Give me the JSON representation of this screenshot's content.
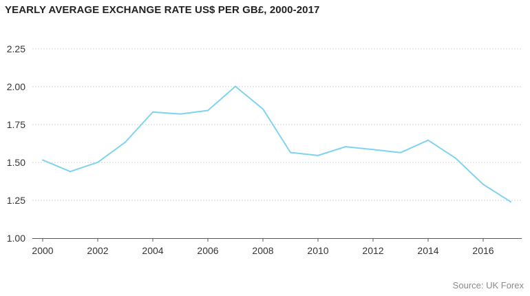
{
  "chart_data": {
    "type": "line",
    "title": "YEARLY AVERAGE EXCHANGE RATE US$ PER GB£, 2000-2017",
    "xlabel": "",
    "ylabel": "",
    "x": [
      2000,
      2001,
      2002,
      2003,
      2004,
      2005,
      2006,
      2007,
      2008,
      2009,
      2010,
      2011,
      2012,
      2013,
      2014,
      2015,
      2016,
      2017
    ],
    "series": [
      {
        "values": [
          1.516,
          1.44,
          1.501,
          1.634,
          1.833,
          1.82,
          1.843,
          2.002,
          1.853,
          1.566,
          1.546,
          1.604,
          1.585,
          1.565,
          1.647,
          1.528,
          1.355,
          1.24
        ],
        "color": "#7fd3ef"
      }
    ],
    "xlim": [
      2000,
      2017
    ],
    "ylim": [
      1.0,
      2.25
    ],
    "yticks": [
      "1.00",
      "1.25",
      "1.50",
      "1.75",
      "2.00",
      "2.25"
    ],
    "xticks": [
      "2000",
      "2002",
      "2004",
      "2006",
      "2008",
      "2010",
      "2012",
      "2014",
      "2016"
    ],
    "grid": true,
    "grid_style": "dashed-horizontal",
    "legend": "none"
  },
  "source": "Source: UK Forex"
}
